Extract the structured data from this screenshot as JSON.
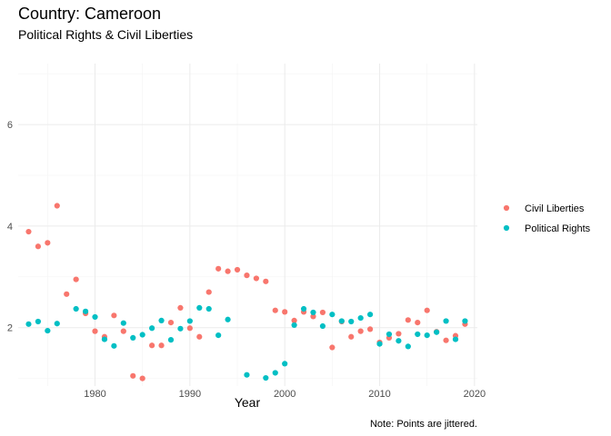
{
  "chart_data": {
    "type": "scatter",
    "title": "Country: Cameroon",
    "subtitle": "Political Rights & Civil Liberties",
    "xlabel": "Year",
    "ylabel": "",
    "caption": "Note: Points are jittered.",
    "xlim": [
      1971.9,
      2020.3
    ],
    "ylim": [
      0.85,
      7.2
    ],
    "x_ticks": [
      1980,
      1990,
      2000,
      2010,
      2020
    ],
    "y_ticks": [
      2,
      4,
      6
    ],
    "grid": true,
    "legend_position": "right",
    "series": [
      {
        "name": "Civil Liberties",
        "color": "#F8766D",
        "points": [
          [
            1973,
            3.89
          ],
          [
            1974,
            3.6
          ],
          [
            1975,
            3.67
          ],
          [
            1976,
            4.4
          ],
          [
            1977,
            2.66
          ],
          [
            1978,
            2.95
          ],
          [
            1979,
            2.28
          ],
          [
            1980,
            1.93
          ],
          [
            1981,
            1.82
          ],
          [
            1982,
            2.24
          ],
          [
            1983,
            1.93
          ],
          [
            1984,
            1.05
          ],
          [
            1985,
            1.0
          ],
          [
            1986,
            1.65
          ],
          [
            1987,
            1.65
          ],
          [
            1988,
            2.1
          ],
          [
            1989,
            2.39
          ],
          [
            1990,
            1.99
          ],
          [
            1991,
            1.82
          ],
          [
            1992,
            2.7
          ],
          [
            1993,
            3.16
          ],
          [
            1994,
            3.11
          ],
          [
            1995,
            3.14
          ],
          [
            1996,
            3.03
          ],
          [
            1997,
            2.97
          ],
          [
            1998,
            2.91
          ],
          [
            1999,
            2.34
          ],
          [
            2000,
            2.31
          ],
          [
            2001,
            2.14
          ],
          [
            2002,
            2.31
          ],
          [
            2003,
            2.22
          ],
          [
            2004,
            2.3
          ],
          [
            2005,
            1.61
          ],
          [
            2006,
            2.12
          ],
          [
            2007,
            1.82
          ],
          [
            2008,
            1.93
          ],
          [
            2009,
            1.97
          ],
          [
            2010,
            1.71
          ],
          [
            2011,
            1.8
          ],
          [
            2012,
            1.88
          ],
          [
            2013,
            2.15
          ],
          [
            2014,
            2.1
          ],
          [
            2015,
            2.34
          ],
          [
            2016,
            1.92
          ],
          [
            2017,
            1.75
          ],
          [
            2018,
            1.84
          ],
          [
            2019,
            2.07
          ]
        ]
      },
      {
        "name": "Political Rights",
        "color": "#00BFC4",
        "points": [
          [
            1973,
            2.07
          ],
          [
            1974,
            2.12
          ],
          [
            1975,
            1.94
          ],
          [
            1976,
            2.08
          ],
          [
            1978,
            2.37
          ],
          [
            1979,
            2.32
          ],
          [
            1980,
            2.21
          ],
          [
            1981,
            1.77
          ],
          [
            1982,
            1.64
          ],
          [
            1983,
            2.09
          ],
          [
            1984,
            1.8
          ],
          [
            1985,
            1.86
          ],
          [
            1986,
            1.99
          ],
          [
            1987,
            2.14
          ],
          [
            1988,
            1.76
          ],
          [
            1989,
            1.98
          ],
          [
            1990,
            2.13
          ],
          [
            1991,
            2.39
          ],
          [
            1992,
            2.37
          ],
          [
            1993,
            1.85
          ],
          [
            1994,
            2.16
          ],
          [
            1996,
            1.07
          ],
          [
            1998,
            1.01
          ],
          [
            1999,
            1.11
          ],
          [
            2000,
            1.29
          ],
          [
            2001,
            2.05
          ],
          [
            2002,
            2.37
          ],
          [
            2003,
            2.3
          ],
          [
            2004,
            2.03
          ],
          [
            2005,
            2.26
          ],
          [
            2006,
            2.13
          ],
          [
            2007,
            2.12
          ],
          [
            2008,
            2.19
          ],
          [
            2009,
            2.26
          ],
          [
            2010,
            1.68
          ],
          [
            2011,
            1.87
          ],
          [
            2012,
            1.74
          ],
          [
            2013,
            1.63
          ],
          [
            2014,
            1.87
          ],
          [
            2015,
            1.85
          ],
          [
            2016,
            1.91
          ],
          [
            2017,
            2.13
          ],
          [
            2018,
            1.77
          ],
          [
            2019,
            2.13
          ]
        ]
      }
    ]
  }
}
